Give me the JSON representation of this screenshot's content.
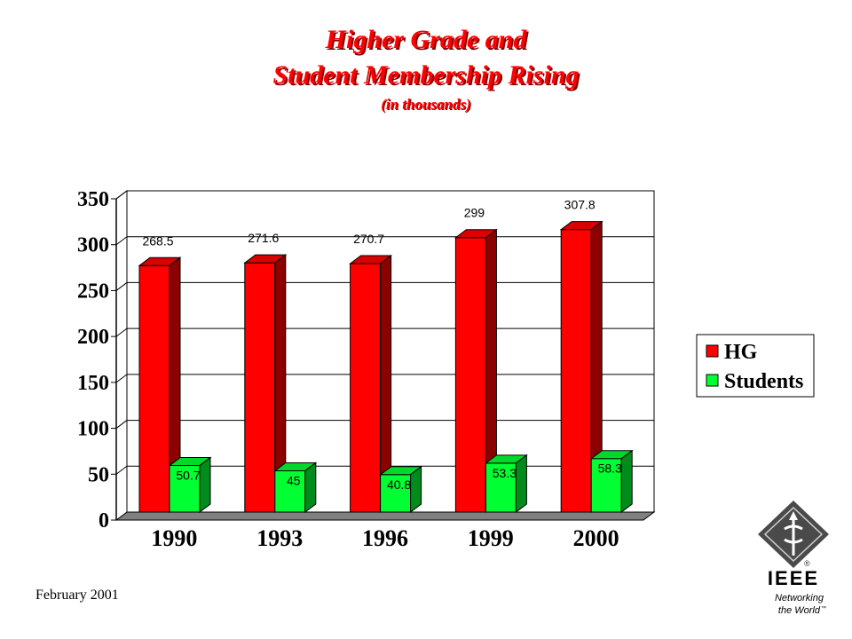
{
  "title_line1": "Higher Grade and",
  "title_line2": "Student Membership Rising",
  "title_line3": "(in thousands)",
  "footer_date": "February 2001",
  "logo": {
    "wordmark": "IEEE",
    "registered": "®",
    "tagline1": "Networking",
    "tagline2": "the World",
    "tm": "™"
  },
  "colors": {
    "hg": "#ff0000",
    "students": "#00ff33",
    "title": "#ff0000"
  },
  "chart_data": {
    "type": "bar",
    "categories": [
      "1990",
      "1993",
      "1996",
      "1999",
      "2000"
    ],
    "series": [
      {
        "name": "HG",
        "values": [
          268.5,
          271.6,
          270.7,
          299,
          307.8
        ]
      },
      {
        "name": "Students",
        "values": [
          50.7,
          45,
          40.8,
          53.3,
          58.3
        ]
      }
    ],
    "data_labels": {
      "HG": [
        "268.5",
        "271.6",
        "270.7",
        "299",
        "307.8"
      ],
      "Students": [
        "50.7",
        "45",
        "40.8",
        "53.3",
        "58.3"
      ]
    },
    "yticks": [
      "0",
      "50",
      "100",
      "150",
      "200",
      "250",
      "300",
      "350"
    ],
    "ylim": [
      0,
      350
    ],
    "grid": true,
    "legend": "right",
    "style": "3d-column"
  }
}
